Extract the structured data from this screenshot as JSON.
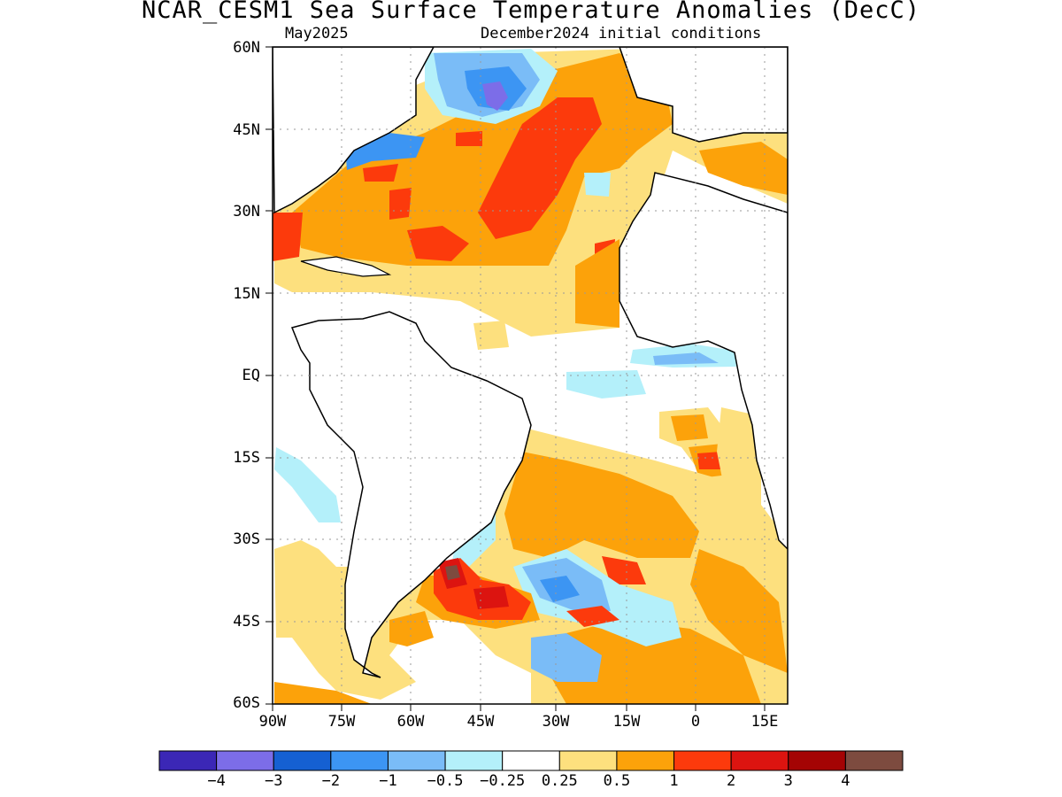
{
  "title": "NCAR_CESM1 Sea Surface Temperature Anomalies (DecC)",
  "subtitle_left": "May2025",
  "subtitle_right": "December2024 initial conditions",
  "lat_labels": [
    "60N",
    "45N",
    "30N",
    "15N",
    "EQ",
    "15S",
    "30S",
    "45S",
    "60S"
  ],
  "lon_labels": [
    "90W",
    "75W",
    "60W",
    "45W",
    "30W",
    "15W",
    "0",
    "15E"
  ],
  "colorbar": {
    "colors": [
      "#3b27b6",
      "#7c6de8",
      "#1560d2",
      "#3c95f3",
      "#7abcf7",
      "#b4f0fa",
      "#ffffff",
      "#fde07e",
      "#fca20a",
      "#fc3a0c",
      "#dc1410",
      "#a40404",
      "#7d4b3f"
    ],
    "labels": [
      "−4",
      "−3",
      "−2",
      "−1",
      "−0.5",
      "−0.25",
      "0.25",
      "0.5",
      "1",
      "2",
      "3",
      "4"
    ]
  },
  "map_data": {
    "lat_range": [
      -60,
      60
    ],
    "lon_range": [
      -90,
      18
    ],
    "variable": "Sea Surface Temperature Anomalies",
    "units": "DecC"
  }
}
